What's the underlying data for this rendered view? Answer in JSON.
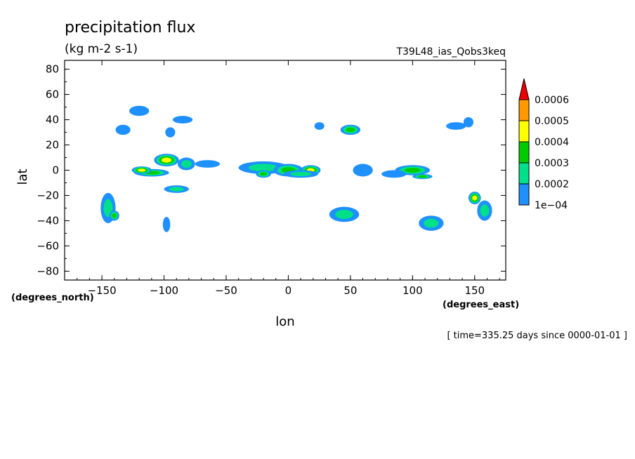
{
  "chart_data": {
    "type": "heatmap",
    "title": "precipitation flux",
    "subtitle": "(kg m-2 s-1)",
    "run_label": "T39L48_ias_Qobs3keq",
    "xlabel": "lon",
    "ylabel": "lat",
    "x_unit": "(degrees_east)",
    "y_unit": "(degrees_north)",
    "time_label": "[ time=335.25 days since 0000-01-01 ]",
    "xlim": [
      -180,
      175
    ],
    "ylim": [
      -87,
      87
    ],
    "x_ticks": [
      -150,
      -100,
      -50,
      0,
      50,
      100,
      150
    ],
    "x_tick_labels": [
      "−150",
      "−100",
      "−50",
      "0",
      "50",
      "100",
      "150"
    ],
    "y_ticks": [
      80,
      60,
      40,
      20,
      0,
      -20,
      -40,
      -60,
      -80
    ],
    "y_tick_labels": [
      "80",
      "60",
      "40",
      "20",
      "0",
      "−20",
      "−40",
      "−60",
      "−80"
    ],
    "grid": false,
    "colorbar": {
      "levels": [
        0.0001,
        0.0002,
        0.0003,
        0.0004,
        0.0005,
        0.0006
      ],
      "labels": [
        "1e−04",
        "0.0002",
        "0.0003",
        "0.0004",
        "0.0005",
        "0.0006"
      ],
      "colors": [
        "#1e90ff",
        "#00e08a",
        "#00cc00",
        "#ffff00",
        "#ff9900",
        "#ee0000"
      ],
      "extend": "max"
    },
    "fields": [
      {
        "lon": -98,
        "lat": 8,
        "rlon": 10,
        "rlat": 5,
        "level": 3
      },
      {
        "lon": -110,
        "lat": -2,
        "rlon": 14,
        "rlat": 3,
        "level": 2
      },
      {
        "lon": -118,
        "lat": 0,
        "rlon": 8,
        "rlat": 3,
        "level": 3
      },
      {
        "lon": -82,
        "lat": 5,
        "rlon": 7,
        "rlat": 5,
        "level": 1
      },
      {
        "lon": -65,
        "lat": 5,
        "rlon": 10,
        "rlat": 3,
        "level": 0
      },
      {
        "lon": -90,
        "lat": -15,
        "rlon": 10,
        "rlat": 3,
        "level": 1
      },
      {
        "lon": -145,
        "lat": -30,
        "rlon": 6,
        "rlat": 12,
        "level": 1
      },
      {
        "lon": -140,
        "lat": -36,
        "rlon": 4,
        "rlat": 4,
        "level": 2
      },
      {
        "lon": -98,
        "lat": -43,
        "rlon": 3,
        "rlat": 6,
        "level": 0
      },
      {
        "lon": -120,
        "lat": 47,
        "rlon": 8,
        "rlat": 4,
        "level": 0
      },
      {
        "lon": -133,
        "lat": 32,
        "rlon": 6,
        "rlat": 4,
        "level": 0
      },
      {
        "lon": -85,
        "lat": 40,
        "rlon": 8,
        "rlat": 3,
        "level": 0
      },
      {
        "lon": -95,
        "lat": 30,
        "rlon": 4,
        "rlat": 4,
        "level": 0
      },
      {
        "lon": -20,
        "lat": 2,
        "rlon": 20,
        "rlat": 5,
        "level": 1
      },
      {
        "lon": -20,
        "lat": -3,
        "rlon": 6,
        "rlat": 3,
        "level": 2
      },
      {
        "lon": 0,
        "lat": 0,
        "rlon": 12,
        "rlat": 5,
        "level": 2
      },
      {
        "lon": 18,
        "lat": 0,
        "rlon": 8,
        "rlat": 4,
        "level": 3
      },
      {
        "lon": 10,
        "lat": -3,
        "rlon": 14,
        "rlat": 3,
        "level": 1
      },
      {
        "lon": 50,
        "lat": 32,
        "rlon": 8,
        "rlat": 4,
        "level": 2
      },
      {
        "lon": 25,
        "lat": 35,
        "rlon": 4,
        "rlat": 3,
        "level": 0
      },
      {
        "lon": 60,
        "lat": 0,
        "rlon": 8,
        "rlat": 5,
        "level": 0
      },
      {
        "lon": 100,
        "lat": 0,
        "rlon": 14,
        "rlat": 4,
        "level": 2
      },
      {
        "lon": 108,
        "lat": -5,
        "rlon": 8,
        "rlat": 2,
        "level": 2
      },
      {
        "lon": 85,
        "lat": -3,
        "rlon": 10,
        "rlat": 3,
        "level": 0
      },
      {
        "lon": 45,
        "lat": -35,
        "rlon": 12,
        "rlat": 6,
        "level": 1
      },
      {
        "lon": 115,
        "lat": -42,
        "rlon": 10,
        "rlat": 6,
        "level": 1
      },
      {
        "lon": 150,
        "lat": -22,
        "rlon": 5,
        "rlat": 5,
        "level": 3
      },
      {
        "lon": 158,
        "lat": -32,
        "rlon": 6,
        "rlat": 8,
        "level": 1
      },
      {
        "lon": 145,
        "lat": 38,
        "rlon": 4,
        "rlat": 4,
        "level": 0
      },
      {
        "lon": 135,
        "lat": 35,
        "rlon": 8,
        "rlat": 3,
        "level": 0
      }
    ]
  }
}
